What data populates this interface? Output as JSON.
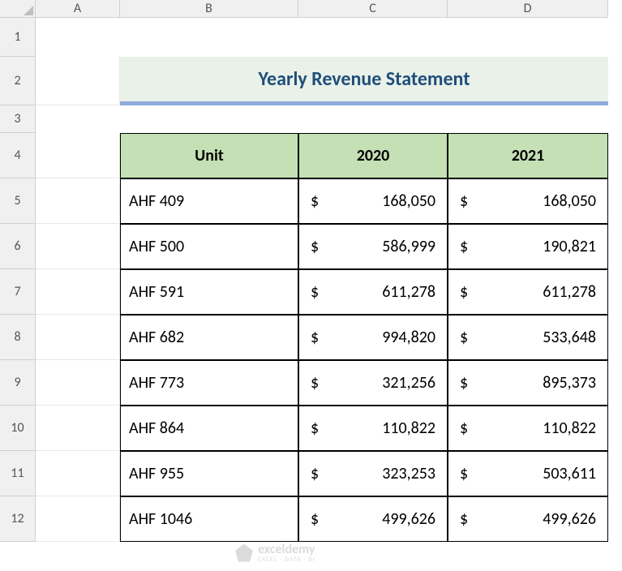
{
  "columns": {
    "A": "A",
    "B": "B",
    "C": "C",
    "D": "D"
  },
  "rows": [
    "1",
    "2",
    "3",
    "4",
    "5",
    "6",
    "7",
    "8",
    "9",
    "10",
    "11",
    "12"
  ],
  "title": "Yearly Revenue Statement",
  "headers": {
    "unit": "Unit",
    "y2020": "2020",
    "y2021": "2021"
  },
  "currency_symbol": "$",
  "data": [
    {
      "unit": "AHF 409",
      "y2020": "168,050",
      "y2021": "168,050"
    },
    {
      "unit": "AHF 500",
      "y2020": "586,999",
      "y2021": "190,821"
    },
    {
      "unit": "AHF 591",
      "y2020": "611,278",
      "y2021": "611,278"
    },
    {
      "unit": "AHF 682",
      "y2020": "994,820",
      "y2021": "533,648"
    },
    {
      "unit": "AHF 773",
      "y2020": "321,256",
      "y2021": "895,373"
    },
    {
      "unit": "AHF 864",
      "y2020": "110,822",
      "y2021": "110,822"
    },
    {
      "unit": "AHF 955",
      "y2020": "323,253",
      "y2021": "503,611"
    },
    {
      "unit": "AHF 1046",
      "y2020": "499,626",
      "y2021": "499,626"
    }
  ],
  "colors": {
    "title_bg": "#eaf1e9",
    "title_text": "#1f4e79",
    "title_underline": "#8eaadb",
    "header_bg": "#c5e0b4",
    "border": "#000000",
    "grid": "#e8e8e8",
    "heading_bg": "#f0f0f0",
    "heading_text": "#555555"
  },
  "watermark": {
    "brand": "exceldemy",
    "tag": "EXCEL · DATA · BI"
  }
}
